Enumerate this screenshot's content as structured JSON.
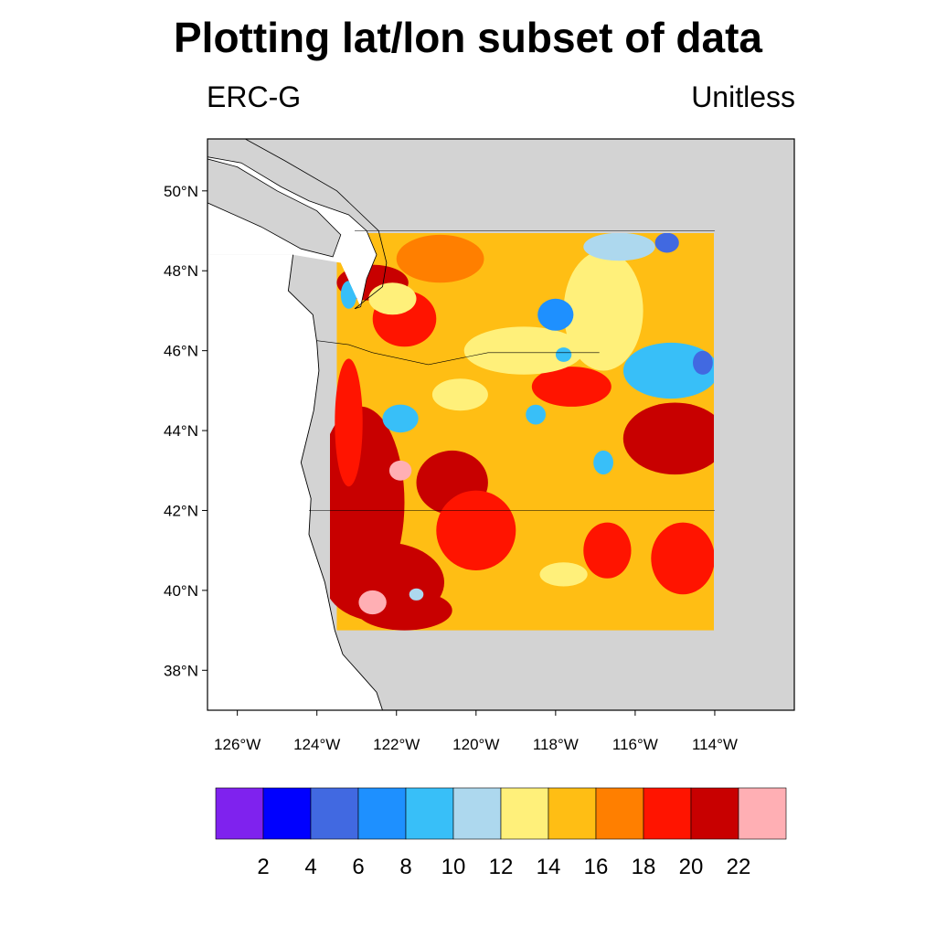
{
  "title": "Plotting lat/lon subset of data",
  "subtitle_left": "ERC-G",
  "subtitle_right": "Unitless",
  "colors": {
    "ocean": "#ffffff",
    "land_background": "#d3d3d3",
    "coastline": "#000000",
    "palette": [
      "#7f22ee",
      "#0000ff",
      "#4169e1",
      "#1e90ff",
      "#38bff8",
      "#add8ee",
      "#fff07a",
      "#ffbe14",
      "#ff7f00",
      "#ff1400",
      "#c80000",
      "#ffafb4"
    ]
  },
  "map": {
    "extent": {
      "lon_min": -126.75,
      "lon_max": -112.0,
      "lat_min": 37.0,
      "lat_max": 51.3
    },
    "data_subset": {
      "lon_min": -123.5,
      "lon_max": -114.0,
      "lat_min": 39.0,
      "lat_max": 49.0
    },
    "lat_ticks": [
      {
        "value": 50,
        "label": "50°N"
      },
      {
        "value": 48,
        "label": "48°N"
      },
      {
        "value": 46,
        "label": "46°N"
      },
      {
        "value": 44,
        "label": "44°N"
      },
      {
        "value": 42,
        "label": "42°N"
      },
      {
        "value": 40,
        "label": "40°N"
      },
      {
        "value": 38,
        "label": "38°N"
      }
    ],
    "lon_ticks": [
      {
        "value": -126,
        "label": "126°W"
      },
      {
        "value": -124,
        "label": "124°W"
      },
      {
        "value": -122,
        "label": "122°W"
      },
      {
        "value": -120,
        "label": "120°W"
      },
      {
        "value": -118,
        "label": "118°W"
      },
      {
        "value": -116,
        "label": "116°W"
      },
      {
        "value": -114,
        "label": "114°W"
      }
    ],
    "coast_points": [
      [
        -124.6,
        48.4
      ],
      [
        -124.72,
        47.5
      ],
      [
        -124.1,
        46.9
      ],
      [
        -124.0,
        46.2
      ],
      [
        -123.95,
        45.5
      ],
      [
        -124.08,
        44.5
      ],
      [
        -124.4,
        43.2
      ],
      [
        -124.15,
        42.3
      ],
      [
        -124.2,
        41.4
      ],
      [
        -123.8,
        40.2
      ],
      [
        -123.55,
        39.0
      ],
      [
        -123.35,
        38.4
      ],
      [
        -122.9,
        37.9
      ],
      [
        -122.5,
        37.45
      ],
      [
        -122.35,
        37.0
      ]
    ],
    "vancouver_island": [
      [
        -126.75,
        50.8
      ],
      [
        -126.0,
        50.6
      ],
      [
        -125.0,
        50.0
      ],
      [
        -124.0,
        49.5
      ],
      [
        -123.4,
        48.9
      ],
      [
        -123.6,
        48.35
      ],
      [
        -124.4,
        48.55
      ],
      [
        -125.4,
        49.1
      ],
      [
        -126.75,
        49.7
      ]
    ],
    "mainland_bc": [
      [
        -126.75,
        51.3
      ],
      [
        -126.75,
        50.85
      ],
      [
        -125.9,
        50.7
      ],
      [
        -124.9,
        50.1
      ],
      [
        -124.2,
        49.75
      ],
      [
        -123.2,
        49.4
      ],
      [
        -122.75,
        49.0
      ],
      [
        -122.5,
        48.4
      ],
      [
        -122.75,
        47.8
      ],
      [
        -122.9,
        47.1
      ],
      [
        -123.05,
        47.05
      ],
      [
        -122.35,
        47.6
      ],
      [
        -122.25,
        48.2
      ],
      [
        -122.45,
        49.0
      ],
      [
        -123.5,
        50.0
      ],
      [
        -124.8,
        50.75
      ],
      [
        -125.8,
        51.3
      ]
    ],
    "boundaries": [
      [
        [
          -124.0,
          46.25
        ],
        [
          -123.2,
          46.15
        ],
        [
          -122.6,
          45.95
        ],
        [
          -121.2,
          45.65
        ],
        [
          -119.7,
          45.95
        ],
        [
          -116.9,
          45.95
        ]
      ],
      [
        [
          -124.2,
          42.0
        ],
        [
          -120.0,
          42.0
        ],
        [
          -117.0,
          42.0
        ],
        [
          -114.0,
          42.0
        ]
      ],
      [
        [
          -123.05,
          49.0
        ],
        [
          -114.0,
          49.0
        ]
      ]
    ]
  },
  "chart_data": {
    "type": "heatmap",
    "title": "Plotting lat/lon subset of data",
    "subtitle_left": "ERC-G",
    "subtitle_right": "Unitless",
    "x_range": [
      -123.5,
      -114.0
    ],
    "y_range": [
      39.0,
      49.0
    ],
    "colorbar": {
      "levels": [
        2,
        4,
        6,
        8,
        10,
        12,
        14,
        16,
        18,
        20,
        22
      ],
      "labels": [
        "2",
        "4",
        "6",
        "8",
        "10",
        "12",
        "14",
        "16",
        "18",
        "20",
        "22"
      ]
    },
    "field": {
      "background": 15,
      "features": [
        {
          "lon": -122.9,
          "lat": 42.2,
          "rx": 1.1,
          "ry": 2.4,
          "value": 21
        },
        {
          "lon": -122.3,
          "lat": 40.2,
          "rx": 1.5,
          "ry": 1.0,
          "value": 21
        },
        {
          "lon": -121.8,
          "lat": 39.5,
          "rx": 1.2,
          "ry": 0.5,
          "value": 20
        },
        {
          "lon": -122.6,
          "lat": 47.7,
          "rx": 0.9,
          "ry": 0.45,
          "value": 21
        },
        {
          "lon": -121.8,
          "lat": 46.8,
          "rx": 0.8,
          "ry": 0.7,
          "value": 19
        },
        {
          "lon": -123.2,
          "lat": 44.2,
          "rx": 0.35,
          "ry": 1.6,
          "value": 19
        },
        {
          "lon": -120.6,
          "lat": 42.7,
          "rx": 0.9,
          "ry": 0.8,
          "value": 20
        },
        {
          "lon": -120.0,
          "lat": 41.5,
          "rx": 1.0,
          "ry": 1.0,
          "value": 19
        },
        {
          "lon": -115.0,
          "lat": 43.8,
          "rx": 1.3,
          "ry": 0.9,
          "value": 20
        },
        {
          "lon": -117.6,
          "lat": 45.1,
          "rx": 1.0,
          "ry": 0.5,
          "value": 19
        },
        {
          "lon": -114.8,
          "lat": 40.8,
          "rx": 0.8,
          "ry": 0.9,
          "value": 19
        },
        {
          "lon": -116.7,
          "lat": 41.0,
          "rx": 0.6,
          "ry": 0.7,
          "value": 18
        },
        {
          "lon": -120.9,
          "lat": 48.3,
          "rx": 1.1,
          "ry": 0.6,
          "value": 17
        },
        {
          "lon": -118.8,
          "lat": 46.0,
          "rx": 1.5,
          "ry": 0.6,
          "value": 13
        },
        {
          "lon": -120.4,
          "lat": 44.9,
          "rx": 0.7,
          "ry": 0.4,
          "value": 13
        },
        {
          "lon": -116.8,
          "lat": 47.0,
          "rx": 1.0,
          "ry": 1.5,
          "value": 13
        },
        {
          "lon": -117.8,
          "lat": 40.4,
          "rx": 0.6,
          "ry": 0.3,
          "value": 13
        },
        {
          "lon": -116.1,
          "lat": 42.5,
          "rx": 0.8,
          "ry": 0.5,
          "value": 14
        },
        {
          "lon": -122.1,
          "lat": 47.3,
          "rx": 0.6,
          "ry": 0.4,
          "value": 13
        },
        {
          "lon": -115.1,
          "lat": 45.5,
          "rx": 1.2,
          "ry": 0.7,
          "value": 8
        },
        {
          "lon": -118.0,
          "lat": 46.9,
          "rx": 0.45,
          "ry": 0.4,
          "value": 6
        },
        {
          "lon": -121.9,
          "lat": 44.3,
          "rx": 0.45,
          "ry": 0.35,
          "value": 8
        },
        {
          "lon": -116.8,
          "lat": 43.2,
          "rx": 0.25,
          "ry": 0.3,
          "value": 8
        },
        {
          "lon": -114.3,
          "lat": 45.7,
          "rx": 0.25,
          "ry": 0.3,
          "value": 4
        },
        {
          "lon": -116.4,
          "lat": 48.6,
          "rx": 0.9,
          "ry": 0.35,
          "value": 10
        },
        {
          "lon": -115.2,
          "lat": 48.7,
          "rx": 0.3,
          "ry": 0.25,
          "value": 5
        },
        {
          "lon": -123.2,
          "lat": 47.4,
          "rx": 0.2,
          "ry": 0.35,
          "value": 9
        },
        {
          "lon": -118.5,
          "lat": 44.4,
          "rx": 0.25,
          "ry": 0.25,
          "value": 9
        },
        {
          "lon": -117.8,
          "lat": 45.9,
          "rx": 0.2,
          "ry": 0.18,
          "value": 9
        },
        {
          "lon": -121.9,
          "lat": 43.0,
          "rx": 0.28,
          "ry": 0.25,
          "value": 23
        },
        {
          "lon": -122.6,
          "lat": 39.7,
          "rx": 0.35,
          "ry": 0.3,
          "value": 23
        },
        {
          "lon": -121.5,
          "lat": 39.9,
          "rx": 0.18,
          "ry": 0.15,
          "value": 10
        }
      ]
    }
  }
}
